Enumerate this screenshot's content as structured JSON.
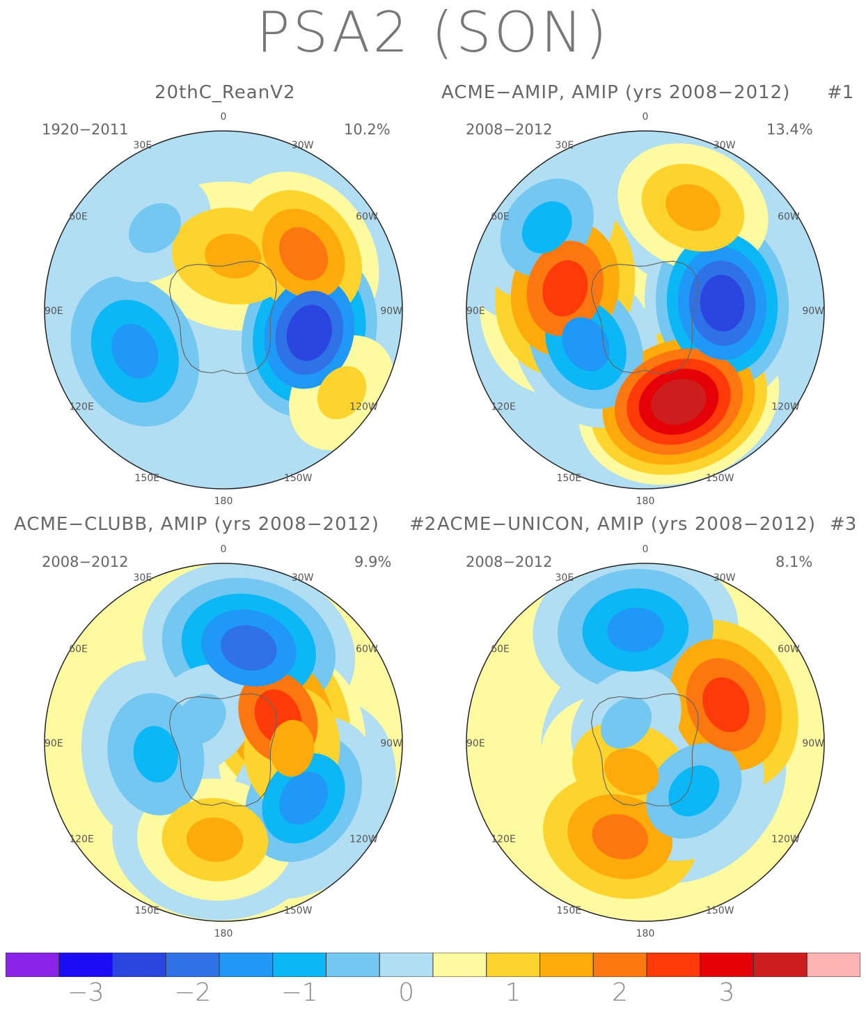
{
  "title": "PSA2 (SON)",
  "panels": [
    {
      "title": "20thC_ReanV2",
      "number": "",
      "years": "1920−2011",
      "percent": "10.2%"
    },
    {
      "title": "ACME−AMIP, AMIP (yrs 2008−2012)",
      "number": "#1",
      "years": "2008−2012",
      "percent": "13.4%"
    },
    {
      "title": "ACME−CLUBB, AMIP (yrs 2008−2012)",
      "number": "#2",
      "years": "2008−2012",
      "percent": "9.9%"
    },
    {
      "title": "ACME−UNICON, AMIP (yrs 2008−2012)",
      "number": "#3",
      "years": "2008−2012",
      "percent": "8.1%"
    }
  ],
  "lon_labels": {
    "top": "0",
    "bottom": "180",
    "l30": "30W",
    "r30": "30E",
    "l60": "60W",
    "r60": "60E",
    "l90": "90W",
    "r90": "90E",
    "l120": "120W",
    "r120": "120E",
    "l150": "150W",
    "r150": "150E"
  },
  "colorbar": {
    "colors": [
      "#8c23e8",
      "#1a0cf5",
      "#2b46e0",
      "#2f72e8",
      "#1f98f7",
      "#0bb7f5",
      "#74c7f0",
      "#b1def2",
      "#fefaa0",
      "#fdd42d",
      "#fdab0b",
      "#fd7710",
      "#fd3a08",
      "#e50007",
      "#cd1d1c",
      "#ffb3b3"
    ],
    "tick_labels": [
      "−3",
      "−2",
      "−1",
      "0",
      "1",
      "2",
      "3"
    ]
  },
  "chart_data": {
    "type": "heatmap",
    "title": "PSA2 (SON)",
    "projection": "south polar stereographic",
    "levels": [
      -3.5,
      -3,
      -2.5,
      -2,
      -1.5,
      -1,
      -0.5,
      0,
      0.5,
      1,
      1.5,
      2,
      2.5,
      3,
      3.5
    ],
    "panels": [
      {
        "name": "20thC_ReanV2",
        "period": "1920-2011",
        "explained_variance_pct": 10.2,
        "centers": [
          {
            "lon": -105,
            "lat": -58,
            "value": -3.0
          },
          {
            "lon": -55,
            "lat": -55,
            "value": 1.9
          },
          {
            "lon": -10,
            "lat": -70,
            "value": 1.2
          },
          {
            "lon": 115,
            "lat": -55,
            "value": -1.6
          },
          {
            "lon": 40,
            "lat": -52,
            "value": -1.0
          },
          {
            "lon": -125,
            "lat": -40,
            "value": 0.8
          }
        ]
      },
      {
        "name": "ACME-AMIP, AMIP (yrs 2008-2012)",
        "period": "2008-2012",
        "explained_variance_pct": 13.4,
        "centers": [
          {
            "lon": -85,
            "lat": -62,
            "value": -3.0
          },
          {
            "lon": -160,
            "lat": -55,
            "value": 3.3
          },
          {
            "lon": 75,
            "lat": -60,
            "value": 2.2
          },
          {
            "lon": -25,
            "lat": -50,
            "value": 1.3
          },
          {
            "lon": 120,
            "lat": -65,
            "value": -2.0
          },
          {
            "lon": 50,
            "lat": -45,
            "value": -1.5
          }
        ]
      },
      {
        "name": "ACME-CLUBB, AMIP (yrs 2008-2012)",
        "period": "2008-2012",
        "explained_variance_pct": 9.9,
        "centers": [
          {
            "lon": -15,
            "lat": -55,
            "value": -2.2
          },
          {
            "lon": -125,
            "lat": -55,
            "value": -2.0
          },
          {
            "lon": -65,
            "lat": -68,
            "value": 2.0
          },
          {
            "lon": -95,
            "lat": -65,
            "value": 1.2
          },
          {
            "lon": 175,
            "lat": -55,
            "value": 1.3
          },
          {
            "lon": 100,
            "lat": -65,
            "value": -1.2
          },
          {
            "lon": 45,
            "lat": -78,
            "value": -1.0
          }
        ]
      },
      {
        "name": "ACME-UNICON, AMIP (yrs 2008-2012)",
        "period": "2008-2012",
        "explained_variance_pct": 8.1,
        "centers": [
          {
            "lon": 5,
            "lat": -50,
            "value": -1.6
          },
          {
            "lon": -65,
            "lat": -58,
            "value": 2.1
          },
          {
            "lon": -135,
            "lat": -65,
            "value": -1.5
          },
          {
            "lon": 165,
            "lat": -55,
            "value": 1.5
          },
          {
            "lon": 155,
            "lat": -78,
            "value": 1.2
          },
          {
            "lon": 45,
            "lat": -80,
            "value": -1.0
          }
        ]
      }
    ]
  }
}
